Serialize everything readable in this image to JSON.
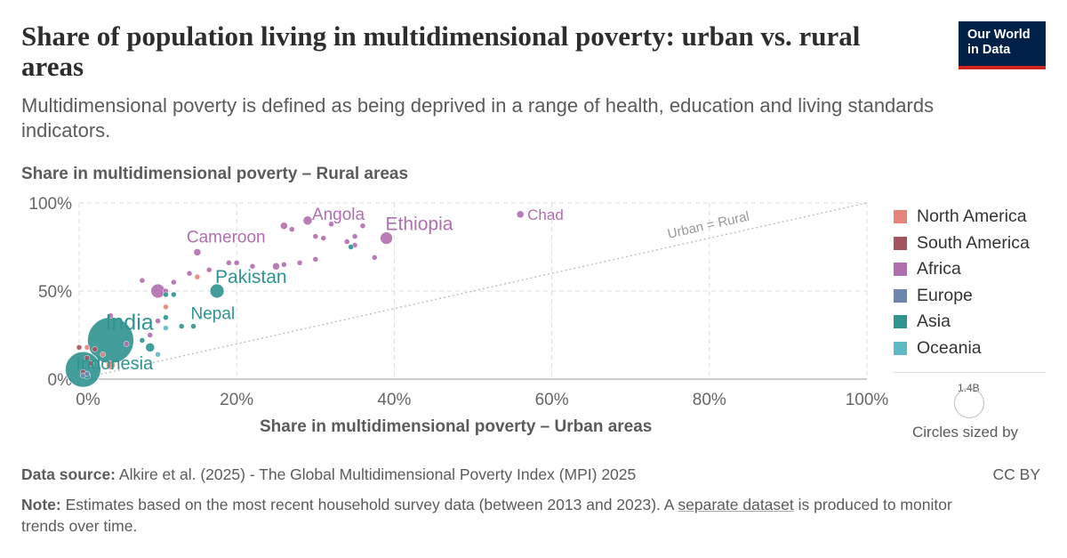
{
  "header": {
    "title": "Share of population living in multidimensional poverty: urban vs. rural areas",
    "subtitle": "Multidimensional poverty is defined as being deprived in a range of health, education and living standards indicators.",
    "logo_line1": "Our World",
    "logo_line2": "in Data"
  },
  "chart_data": {
    "type": "scatter",
    "title": "Share of population living in multidimensional poverty: urban vs. rural areas",
    "xlabel": "Share in multidimensional poverty – Urban areas",
    "ylabel": "Share in multidimensional poverty – Rural areas",
    "xlim": [
      0,
      100
    ],
    "ylim": [
      0,
      100
    ],
    "x_ticks": [
      "0%",
      "20%",
      "40%",
      "60%",
      "80%",
      "100%"
    ],
    "y_ticks": [
      "0%",
      "50%",
      "100%"
    ],
    "grid": true,
    "reference_line_label": "Urban = Rural",
    "legend_placement": "right",
    "size_legend": {
      "value": "1.4B",
      "label": "Circles sized by"
    },
    "regions": [
      {
        "name": "North America",
        "color": "#e6857a"
      },
      {
        "name": "South America",
        "color": "#a2545f"
      },
      {
        "name": "Africa",
        "color": "#b16eaf"
      },
      {
        "name": "Europe",
        "color": "#6e86ad"
      },
      {
        "name": "Asia",
        "color": "#2f9490"
      },
      {
        "name": "Oceania",
        "color": "#60bac6"
      }
    ],
    "labeled_points": [
      {
        "label": "Chad",
        "region": "Africa",
        "x": 56,
        "y": 93.5,
        "size": 4
      },
      {
        "label": "Angola",
        "region": "Africa",
        "x": 29,
        "y": 90,
        "size": 5
      },
      {
        "label": "Ethiopia",
        "region": "Africa",
        "x": 39,
        "y": 80,
        "size": 7
      },
      {
        "label": "Cameroon",
        "region": "Africa",
        "x": 15,
        "y": 72,
        "size": 4
      },
      {
        "label": "Pakistan",
        "region": "Asia",
        "x": 17.5,
        "y": 50,
        "size": 8
      },
      {
        "label": "Nepal",
        "region": "Asia",
        "x": 14.5,
        "y": 30,
        "size": 3
      },
      {
        "label": "India",
        "region": "Asia",
        "x": 4,
        "y": 22,
        "size": 26
      },
      {
        "label": "Indonesia",
        "region": "Asia",
        "x": 0.5,
        "y": 5.5,
        "size": 20
      }
    ],
    "points": [
      {
        "region": "Africa",
        "x": 10,
        "y": 50,
        "size": 8
      },
      {
        "region": "Africa",
        "x": 26,
        "y": 87,
        "size": 4
      },
      {
        "region": "Africa",
        "x": 27,
        "y": 85,
        "size": 3
      },
      {
        "region": "Africa",
        "x": 30,
        "y": 81,
        "size": 3
      },
      {
        "region": "Africa",
        "x": 31,
        "y": 80,
        "size": 3
      },
      {
        "region": "Africa",
        "x": 32,
        "y": 88,
        "size": 3
      },
      {
        "region": "Africa",
        "x": 34,
        "y": 78,
        "size": 3
      },
      {
        "region": "Africa",
        "x": 35,
        "y": 81,
        "size": 3
      },
      {
        "region": "Africa",
        "x": 35,
        "y": 76,
        "size": 3
      },
      {
        "region": "Africa",
        "x": 36,
        "y": 87,
        "size": 3
      },
      {
        "region": "Africa",
        "x": 37.5,
        "y": 69,
        "size": 3
      },
      {
        "region": "Africa",
        "x": 19,
        "y": 66,
        "size": 3
      },
      {
        "region": "Africa",
        "x": 20,
        "y": 66,
        "size": 3
      },
      {
        "region": "Africa",
        "x": 22,
        "y": 64,
        "size": 3
      },
      {
        "region": "Africa",
        "x": 25,
        "y": 64,
        "size": 4
      },
      {
        "region": "Africa",
        "x": 26,
        "y": 65,
        "size": 3
      },
      {
        "region": "Africa",
        "x": 28,
        "y": 66,
        "size": 3
      },
      {
        "region": "Africa",
        "x": 30,
        "y": 68,
        "size": 3
      },
      {
        "region": "Africa",
        "x": 16.5,
        "y": 62,
        "size": 3
      },
      {
        "region": "Africa",
        "x": 8,
        "y": 56,
        "size": 3
      },
      {
        "region": "Africa",
        "x": 12,
        "y": 55,
        "size": 3
      },
      {
        "region": "Africa",
        "x": 11,
        "y": 50,
        "size": 3
      },
      {
        "region": "Africa",
        "x": 4,
        "y": 36,
        "size": 3
      },
      {
        "region": "Africa",
        "x": 10,
        "y": 33,
        "size": 3
      },
      {
        "region": "Africa",
        "x": 9,
        "y": 25,
        "size": 3
      },
      {
        "region": "Africa",
        "x": 6,
        "y": 20,
        "size": 3
      },
      {
        "region": "Africa",
        "x": 14,
        "y": 60,
        "size": 3
      },
      {
        "region": "North America",
        "x": 15,
        "y": 58,
        "size": 3
      },
      {
        "region": "North America",
        "x": 11,
        "y": 41,
        "size": 3
      },
      {
        "region": "North America",
        "x": 4,
        "y": 8,
        "size": 5
      },
      {
        "region": "North America",
        "x": 3,
        "y": 14,
        "size": 3
      },
      {
        "region": "North America",
        "x": 1,
        "y": 18,
        "size": 3
      },
      {
        "region": "South America",
        "x": 0,
        "y": 18,
        "size": 3
      },
      {
        "region": "South America",
        "x": 1,
        "y": 12,
        "size": 3
      },
      {
        "region": "South America",
        "x": 2,
        "y": 17,
        "size": 3
      },
      {
        "region": "South America",
        "x": 0.5,
        "y": 4,
        "size": 3
      },
      {
        "region": "South America",
        "x": 1.5,
        "y": 9,
        "size": 3
      },
      {
        "region": "Europe",
        "x": 0.5,
        "y": 2,
        "size": 3
      },
      {
        "region": "Europe",
        "x": 1,
        "y": 3,
        "size": 3
      },
      {
        "region": "Asia",
        "x": 11,
        "y": 48,
        "size": 3
      },
      {
        "region": "Asia",
        "x": 12,
        "y": 48,
        "size": 3
      },
      {
        "region": "Asia",
        "x": 13,
        "y": 30,
        "size": 3
      },
      {
        "region": "Asia",
        "x": 8,
        "y": 22,
        "size": 3
      },
      {
        "region": "Asia",
        "x": 9,
        "y": 18,
        "size": 5
      },
      {
        "region": "Asia",
        "x": 34.5,
        "y": 75,
        "size": 3
      },
      {
        "region": "Asia",
        "x": 11,
        "y": 35,
        "size": 3
      },
      {
        "region": "Asia",
        "x": 1,
        "y": 2,
        "size": 4
      },
      {
        "region": "Oceania",
        "x": 11,
        "y": 29,
        "size": 3
      },
      {
        "region": "Oceania",
        "x": 10,
        "y": 14,
        "size": 3
      }
    ]
  },
  "footer": {
    "source_label": "Data source:",
    "source_text": "Alkire et al. (2025) - The Global Multidimensional Poverty Index (MPI) 2025",
    "license": "CC BY",
    "note_label": "Note:",
    "note_text_before": "Estimates based on the most recent household survey data (between 2013 and 2023). A",
    "note_link": "separate dataset",
    "note_text_after": "is produced to monitor trends over time."
  }
}
